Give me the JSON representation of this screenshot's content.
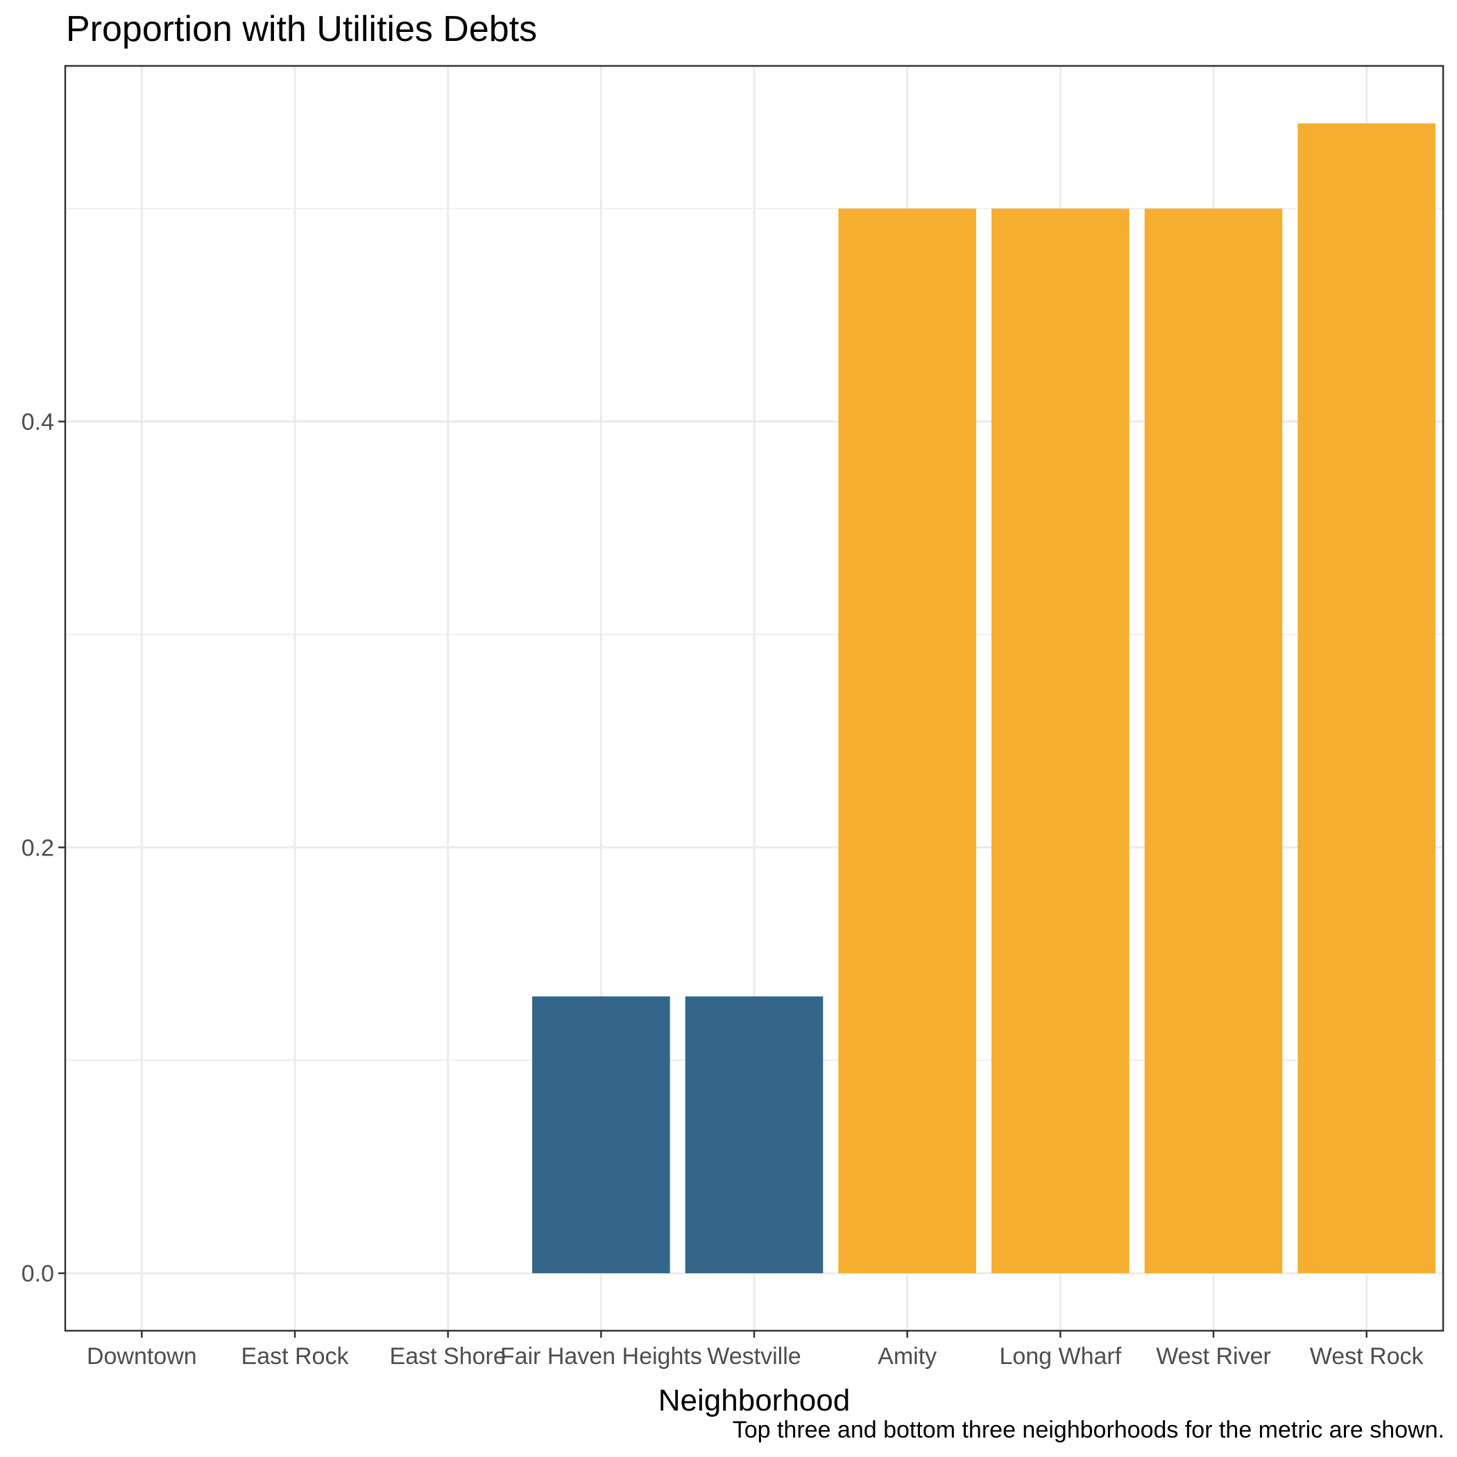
{
  "chart_data": {
    "type": "bar",
    "title": "Proportion with Utilities Debts",
    "xlabel": "Neighborhood",
    "ylabel": "",
    "caption": "Top three and bottom three neighborhoods for the metric are shown.",
    "categories": [
      "Downtown",
      "East Rock",
      "East Shore",
      "Fair Haven Heights",
      "Westville",
      "Amity",
      "Long Wharf",
      "West River",
      "West Rock"
    ],
    "values": [
      0,
      0,
      0,
      0.13,
      0.13,
      0.5,
      0.5,
      0.5,
      0.54
    ],
    "groups": [
      "bottom",
      "bottom",
      "bottom",
      "bottom",
      "bottom",
      "top",
      "top",
      "top",
      "top"
    ],
    "colors": {
      "bottom": "#336689",
      "top": "#f5ae2f"
    },
    "ylim": [
      -0.027,
      0.567
    ],
    "yticks": [
      0.0,
      0.2,
      0.4
    ],
    "ytick_labels": [
      "0.0",
      "0.2",
      "0.4"
    ],
    "grid": true,
    "legend": "none"
  }
}
